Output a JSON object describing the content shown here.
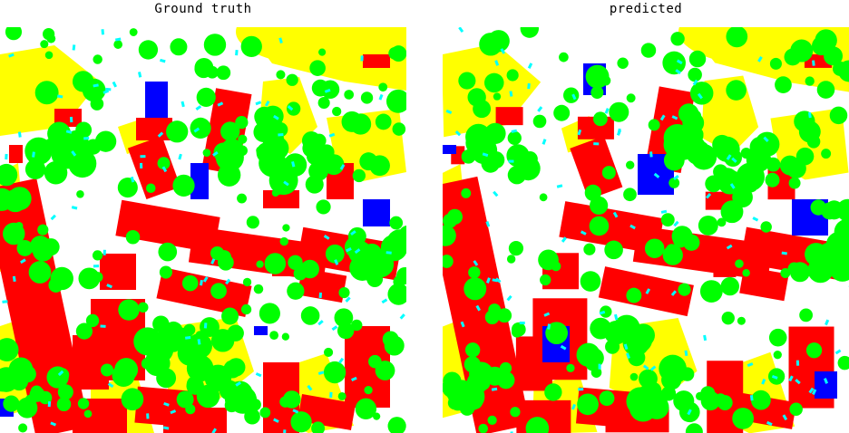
{
  "figure": {
    "left_panel": {
      "title": "Ground truth"
    },
    "right_panel": {
      "title": "predicted"
    }
  },
  "legend_colors": {
    "impervious_surface": "#ffffff",
    "building": "#ff0000",
    "low_vegetation": "#ffff00",
    "tree": "#00ff00",
    "car": "#00ffff",
    "clutter": "#0000ff"
  }
}
